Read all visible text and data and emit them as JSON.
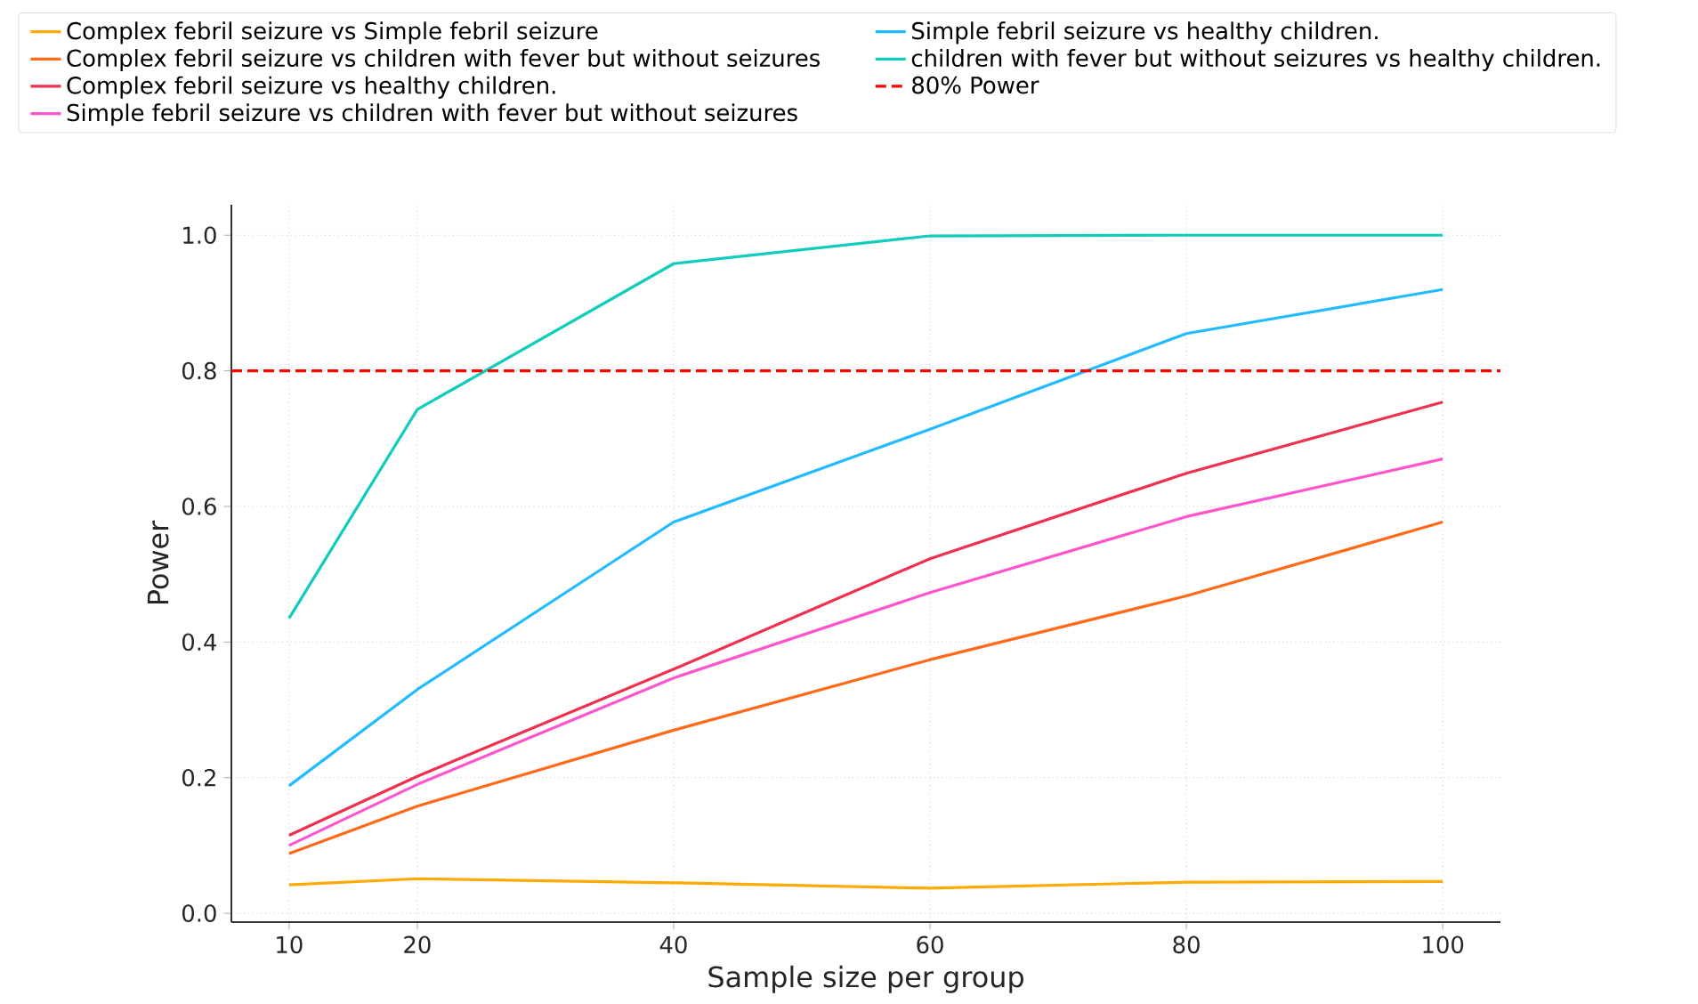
{
  "chart_data": {
    "type": "line",
    "xlabel": "Sample size per group",
    "ylabel": "Power",
    "x": [
      10,
      20,
      40,
      60,
      80,
      100
    ],
    "series": [
      {
        "name": "Complex febril seizure vs Simple febril seizure",
        "color": "#ffaa00",
        "values": [
          0.042,
          0.051,
          0.045,
          0.037,
          0.046,
          0.047
        ]
      },
      {
        "name": "Complex febril seizure vs children with fever but without seizures",
        "color": "#ff6a1a",
        "values": [
          0.088,
          0.158,
          0.27,
          0.374,
          0.468,
          0.577
        ]
      },
      {
        "name": "Complex febril seizure vs healthy children.",
        "color": "#f0304f",
        "values": [
          0.115,
          0.202,
          0.36,
          0.523,
          0.649,
          0.754
        ]
      },
      {
        "name": "Simple febril seizure vs children with fever but without seizures",
        "color": "#ff55cc",
        "values": [
          0.1,
          0.19,
          0.347,
          0.473,
          0.585,
          0.67
        ]
      },
      {
        "name": "Simple febril seizure vs healthy children.",
        "color": "#22bbff",
        "values": [
          0.188,
          0.33,
          0.577,
          0.714,
          0.855,
          0.92
        ]
      },
      {
        "name": "children with fever but without seizures  vs healthy children.",
        "color": "#11ccbb",
        "values": [
          0.435,
          0.743,
          0.958,
          0.999,
          1.0,
          1.0
        ]
      }
    ],
    "ref_lines": [
      {
        "axis": "y",
        "value": 0.8,
        "label": "80% Power",
        "color": "#ff0000",
        "line_style": "dashed"
      }
    ],
    "xlim": [
      5.5,
      104.5
    ],
    "ylim": [
      -0.013,
      1.045
    ],
    "xticks": [
      10,
      20,
      40,
      60,
      80,
      100
    ],
    "yticks": [
      {
        "value": 0,
        "label": "0.0"
      },
      {
        "value": 0.2,
        "label": "0.2"
      },
      {
        "value": 0.4,
        "label": "0.4"
      },
      {
        "value": 0.6,
        "label": "0.6"
      },
      {
        "value": 0.8,
        "label": "0.8"
      },
      {
        "value": 1.0,
        "label": "1.0"
      }
    ],
    "grid": true,
    "legend": "top",
    "marker": "none",
    "line_style": "solid"
  }
}
